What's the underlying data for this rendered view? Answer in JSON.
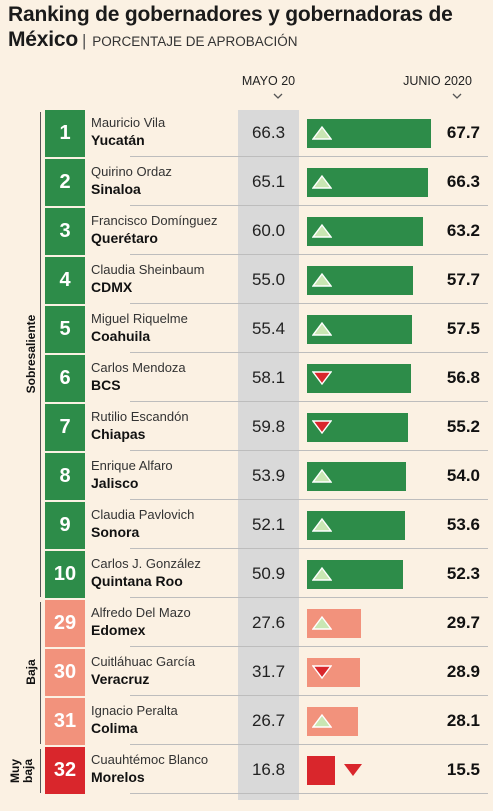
{
  "title": "Ranking de gobernadores y gobernadoras de México",
  "subtitle": "PORCENTAJE DE APROBACIÓN",
  "columns": {
    "may": "MAYO 20",
    "jun": "JUNIO 2020"
  },
  "groups": {
    "sobresaliente": "Sobresaliente",
    "baja": "Baja",
    "muy_baja": "Muy baja"
  },
  "colors": {
    "sobresaliente": "#2d8c49",
    "baja": "#f2927c",
    "muy_baja": "#d9262c",
    "arrow_up_fill": "#c9e6b3",
    "arrow_down_fill": "#d9262c"
  },
  "chart_data": {
    "type": "bar",
    "title": "Ranking de gobernadores y gobernadoras de México",
    "subtitle": "PORCENTAJE DE APROBACIÓN",
    "series": [
      {
        "name": "MAYO 20",
        "values": [
          66.3,
          65.1,
          60.0,
          55.0,
          55.4,
          58.1,
          59.8,
          53.9,
          52.1,
          50.9,
          27.6,
          31.7,
          26.7,
          16.8
        ]
      },
      {
        "name": "JUNIO 2020",
        "values": [
          67.7,
          66.3,
          63.2,
          57.7,
          57.5,
          56.8,
          55.2,
          54.0,
          53.6,
          52.3,
          29.7,
          28.9,
          28.1,
          15.5
        ]
      }
    ],
    "rows": [
      {
        "rank": "1",
        "name": "Mauricio Vila",
        "state": "Yucatán",
        "may": "66.3",
        "jun": "67.7",
        "jun_value": 67.7,
        "trend": "up",
        "group": "sobresaliente"
      },
      {
        "rank": "2",
        "name": "Quirino Ordaz",
        "state": "Sinaloa",
        "may": "65.1",
        "jun": "66.3",
        "jun_value": 66.3,
        "trend": "up",
        "group": "sobresaliente"
      },
      {
        "rank": "3",
        "name": "Francisco Domínguez",
        "state": "Querétaro",
        "may": "60.0",
        "jun": "63.2",
        "jun_value": 63.2,
        "trend": "up",
        "group": "sobresaliente"
      },
      {
        "rank": "4",
        "name": "Claudia Sheinbaum",
        "state": "CDMX",
        "may": "55.0",
        "jun": "57.7",
        "jun_value": 57.7,
        "trend": "up",
        "group": "sobresaliente"
      },
      {
        "rank": "5",
        "name": "Miguel Riquelme",
        "state": "Coahuila",
        "may": "55.4",
        "jun": "57.5",
        "jun_value": 57.5,
        "trend": "up",
        "group": "sobresaliente"
      },
      {
        "rank": "6",
        "name": "Carlos Mendoza",
        "state": "BCS",
        "may": "58.1",
        "jun": "56.8",
        "jun_value": 56.8,
        "trend": "down",
        "group": "sobresaliente"
      },
      {
        "rank": "7",
        "name": "Rutilio Escandón",
        "state": "Chiapas",
        "may": "59.8",
        "jun": "55.2",
        "jun_value": 55.2,
        "trend": "down",
        "group": "sobresaliente"
      },
      {
        "rank": "8",
        "name": "Enrique Alfaro",
        "state": "Jalisco",
        "may": "53.9",
        "jun": "54.0",
        "jun_value": 54.0,
        "trend": "up",
        "group": "sobresaliente"
      },
      {
        "rank": "9",
        "name": "Claudia Pavlovich",
        "state": "Sonora",
        "may": "52.1",
        "jun": "53.6",
        "jun_value": 53.6,
        "trend": "up",
        "group": "sobresaliente"
      },
      {
        "rank": "10",
        "name": "Carlos J. González",
        "state": "Quintana Roo",
        "may": "50.9",
        "jun": "52.3",
        "jun_value": 52.3,
        "trend": "up",
        "group": "sobresaliente"
      },
      {
        "rank": "29",
        "name": "Alfredo Del Mazo",
        "state": "Edomex",
        "may": "27.6",
        "jun": "29.7",
        "jun_value": 29.7,
        "trend": "up",
        "group": "baja"
      },
      {
        "rank": "30",
        "name": "Cuitláhuac García",
        "state": "Veracruz",
        "may": "31.7",
        "jun": "28.9",
        "jun_value": 28.9,
        "trend": "down",
        "group": "baja"
      },
      {
        "rank": "31",
        "name": "Ignacio Peralta",
        "state": "Colima",
        "may": "26.7",
        "jun": "28.1",
        "jun_value": 28.1,
        "trend": "up",
        "group": "baja"
      },
      {
        "rank": "32",
        "name": "Cuauhtémoc Blanco",
        "state": "Morelos",
        "may": "16.8",
        "jun": "15.5",
        "jun_value": 15.5,
        "trend": "down",
        "group": "muy_baja"
      }
    ]
  }
}
